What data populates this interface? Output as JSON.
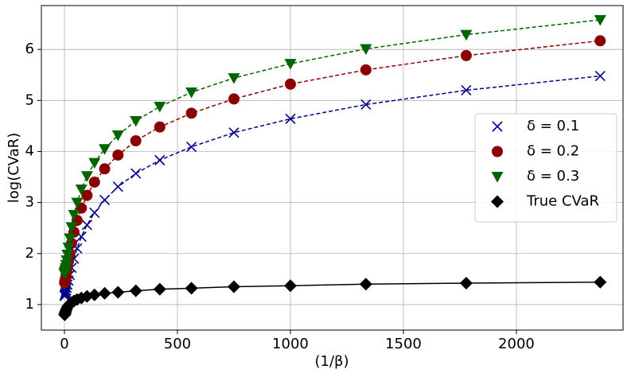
{
  "chart_data": {
    "type": "line",
    "xlabel": "(1/β)",
    "ylabel": "log(CVaR)",
    "x": [
      1,
      1.33,
      1.78,
      2.37,
      3.16,
      4.22,
      5.62,
      7.5,
      10,
      13.3,
      17.8,
      23.7,
      31.6,
      42.2,
      56.2,
      75,
      100,
      133,
      178,
      237,
      316,
      422,
      562,
      750,
      1000,
      1334,
      1778,
      2371
    ],
    "series": [
      {
        "name": "δ = 0.1",
        "color": "#00008b",
        "marker": "x",
        "linestyle": "dashed",
        "values": [
          1.17,
          1.17,
          1.18,
          1.19,
          1.2,
          1.22,
          1.25,
          1.28,
          1.33,
          1.39,
          1.47,
          1.58,
          1.72,
          1.9,
          2.1,
          2.33,
          2.56,
          2.8,
          3.05,
          3.31,
          3.57,
          3.83,
          4.09,
          4.37,
          4.64,
          4.92,
          5.2,
          5.48
        ]
      },
      {
        "name": "δ = 0.2",
        "color": "#8b0000",
        "marker": "circle",
        "linestyle": "dashed",
        "values": [
          1.43,
          1.43,
          1.44,
          1.45,
          1.47,
          1.49,
          1.52,
          1.57,
          1.64,
          1.73,
          1.85,
          2.0,
          2.2,
          2.42,
          2.65,
          2.89,
          3.14,
          3.4,
          3.66,
          3.93,
          4.21,
          4.48,
          4.75,
          5.03,
          5.32,
          5.6,
          5.88,
          6.17
        ]
      },
      {
        "name": "δ = 0.3",
        "color": "#006400",
        "marker": "triangle-down",
        "linestyle": "dashed",
        "values": [
          1.6,
          1.61,
          1.62,
          1.63,
          1.65,
          1.68,
          1.72,
          1.78,
          1.87,
          1.98,
          2.12,
          2.3,
          2.52,
          2.76,
          3.0,
          3.26,
          3.52,
          3.78,
          4.05,
          4.32,
          4.6,
          4.88,
          5.16,
          5.44,
          5.72,
          6.01,
          6.29,
          6.58
        ]
      },
      {
        "name": "True CVaR",
        "color": "#000000",
        "marker": "diamond",
        "linestyle": "solid",
        "values": [
          0.8,
          0.8,
          0.81,
          0.82,
          0.83,
          0.85,
          0.87,
          0.89,
          0.92,
          0.95,
          0.98,
          1.01,
          1.04,
          1.07,
          1.1,
          1.13,
          1.16,
          1.19,
          1.22,
          1.24,
          1.27,
          1.3,
          1.32,
          1.35,
          1.37,
          1.4,
          1.42,
          1.44
        ]
      }
    ],
    "xlim": [
      -102,
      2472
    ],
    "ylim": [
      0.5,
      6.86
    ],
    "xticks": [
      0,
      500,
      1000,
      1500,
      2000
    ],
    "yticks": [
      1,
      2,
      3,
      4,
      5,
      6
    ],
    "grid": true,
    "legend": "right"
  }
}
